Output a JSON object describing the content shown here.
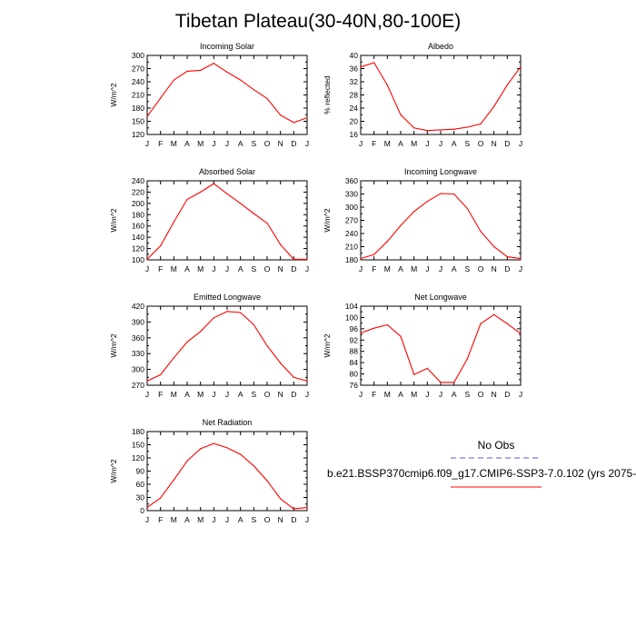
{
  "title": "Tibetan Plateau(30-40N,80-100E)",
  "legend": {
    "entries": [
      {
        "label": "No Obs",
        "color": "#5555ff",
        "dashed": true
      },
      {
        "label": "b.e21.BSSP370cmip6.f09_g17.CMIP6-SSP3-7.0.102 (yrs 2075-",
        "color": "#ff0000",
        "dashed": false
      }
    ]
  },
  "colors": {
    "model": "#ff0000",
    "obs": "#5555ff",
    "axis": "#000000"
  },
  "chart_data": [
    {
      "type": "line",
      "title": "Incoming Solar",
      "ylabel": "W/m^2",
      "categories": [
        "J",
        "F",
        "M",
        "A",
        "M",
        "J",
        "J",
        "A",
        "S",
        "O",
        "N",
        "D",
        "J"
      ],
      "ylim": [
        120,
        300
      ],
      "yticks": [
        120,
        150,
        180,
        210,
        240,
        270,
        300
      ],
      "series": [
        {
          "values": [
            161,
            203,
            244,
            264,
            266,
            282,
            262,
            244,
            222,
            202,
            164,
            147,
            158
          ]
        }
      ]
    },
    {
      "type": "line",
      "title": "Albedo",
      "ylabel": "% reflected",
      "categories": [
        "J",
        "F",
        "M",
        "A",
        "M",
        "J",
        "J",
        "A",
        "S",
        "O",
        "N",
        "D",
        "J"
      ],
      "ylim": [
        16,
        40
      ],
      "yticks": [
        16,
        20,
        24,
        28,
        32,
        36,
        40
      ],
      "series": [
        {
          "values": [
            36.5,
            37.8,
            31,
            22,
            18,
            17.2,
            17.4,
            17.6,
            18.2,
            19.2,
            24.5,
            31,
            36.5
          ]
        }
      ]
    },
    {
      "type": "line",
      "title": "Absorbed Solar",
      "ylabel": "W/m^2",
      "categories": [
        "J",
        "F",
        "M",
        "A",
        "M",
        "J",
        "J",
        "A",
        "S",
        "O",
        "N",
        "D",
        "J"
      ],
      "ylim": [
        100,
        240
      ],
      "yticks": [
        100,
        120,
        140,
        160,
        180,
        200,
        220,
        240
      ],
      "series": [
        {
          "values": [
            101,
            125,
            167,
            207,
            220,
            235,
            217,
            200,
            182,
            165,
            127,
            101,
            101
          ]
        }
      ]
    },
    {
      "type": "line",
      "title": "Incoming Longwave",
      "ylabel": "W/m^2",
      "categories": [
        "J",
        "F",
        "M",
        "A",
        "M",
        "J",
        "J",
        "A",
        "S",
        "O",
        "N",
        "D",
        "J"
      ],
      "ylim": [
        180,
        360
      ],
      "yticks": [
        180,
        210,
        240,
        270,
        300,
        330,
        360
      ],
      "series": [
        {
          "values": [
            183,
            192,
            222,
            258,
            290,
            313,
            331,
            330,
            297,
            245,
            210,
            187,
            183
          ]
        }
      ]
    },
    {
      "type": "line",
      "title": "Emitted Longwave",
      "ylabel": "W/m^2",
      "categories": [
        "J",
        "F",
        "M",
        "A",
        "M",
        "J",
        "J",
        "A",
        "S",
        "O",
        "N",
        "D",
        "J"
      ],
      "ylim": [
        270,
        420
      ],
      "yticks": [
        270,
        300,
        330,
        360,
        390,
        420
      ],
      "series": [
        {
          "values": [
            278,
            290,
            322,
            352,
            372,
            398,
            410,
            408,
            385,
            345,
            312,
            285,
            278
          ]
        }
      ]
    },
    {
      "type": "line",
      "title": "Net Longwave",
      "ylabel": "W/m^2",
      "categories": [
        "J",
        "F",
        "M",
        "A",
        "M",
        "J",
        "J",
        "A",
        "S",
        "O",
        "N",
        "D",
        "J"
      ],
      "ylim": [
        76,
        104
      ],
      "yticks": [
        76,
        80,
        84,
        88,
        92,
        96,
        100,
        104
      ],
      "series": [
        {
          "values": [
            94.5,
            96.2,
            97.4,
            93.3,
            79.8,
            82.0,
            77.0,
            77.0,
            85.3,
            97.8,
            101.0,
            97.8,
            94.3
          ]
        }
      ]
    },
    {
      "type": "line",
      "title": "Net Radiation",
      "ylabel": "W/m^2",
      "categories": [
        "J",
        "F",
        "M",
        "A",
        "M",
        "J",
        "J",
        "A",
        "S",
        "O",
        "N",
        "D",
        "J"
      ],
      "ylim": [
        0,
        180
      ],
      "yticks": [
        0,
        30,
        60,
        90,
        120,
        150,
        180
      ],
      "series": [
        {
          "values": [
            7,
            29,
            70,
            113,
            141,
            153,
            143,
            128,
            102,
            68,
            27,
            4,
            7
          ]
        }
      ]
    }
  ]
}
